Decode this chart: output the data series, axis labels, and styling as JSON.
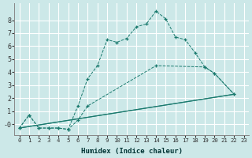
{
  "xlabel": "Humidex (Indice chaleur)",
  "bg_color": "#cce8e8",
  "grid_color": "#ffffff",
  "line_color": "#1a7a6e",
  "xlim": [
    -0.5,
    23.5
  ],
  "ylim": [
    -0.85,
    9.3
  ],
  "xticks": [
    0,
    1,
    2,
    3,
    4,
    5,
    6,
    7,
    8,
    9,
    10,
    11,
    12,
    13,
    14,
    15,
    16,
    17,
    18,
    19,
    20,
    21,
    22,
    23
  ],
  "yticks": [
    0,
    1,
    2,
    3,
    4,
    5,
    6,
    7,
    8
  ],
  "yticklabels": [
    "-0",
    "1",
    "2",
    "3",
    "4",
    "5",
    "6",
    "7",
    "8"
  ],
  "line1_x": [
    0,
    1,
    2,
    3,
    4,
    5,
    6,
    7,
    8,
    9,
    10,
    11,
    12,
    13,
    14,
    15,
    16,
    17,
    18,
    19,
    20,
    22
  ],
  "line1_y": [
    -0.3,
    0.7,
    -0.3,
    -0.3,
    -0.3,
    -0.4,
    1.4,
    3.5,
    4.5,
    6.5,
    6.3,
    6.6,
    7.5,
    7.7,
    8.7,
    8.1,
    6.7,
    6.5,
    5.5,
    4.4,
    3.9,
    2.3
  ],
  "line2_x": [
    0,
    1,
    2,
    3,
    4,
    5,
    6,
    7,
    14,
    19,
    20,
    22
  ],
  "line2_y": [
    -0.3,
    0.7,
    -0.3,
    -0.3,
    -0.3,
    -0.4,
    0.3,
    1.4,
    4.5,
    4.4,
    3.9,
    2.3
  ],
  "line3_x": [
    0,
    22
  ],
  "line3_y": [
    -0.3,
    2.3
  ],
  "line4_x": [
    0,
    22
  ],
  "line4_y": [
    -0.3,
    2.3
  ],
  "xlabel_fontsize": 6.5,
  "tick_fontsize_x": 5.2,
  "tick_fontsize_y": 6.0
}
